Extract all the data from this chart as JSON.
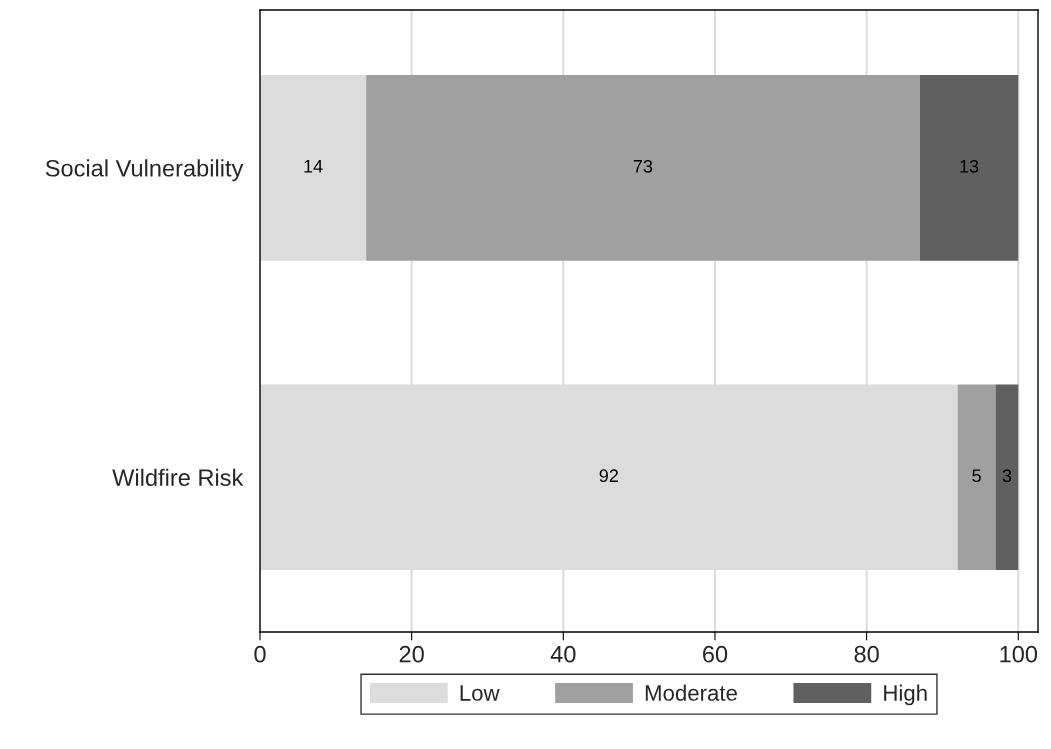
{
  "chart_data": {
    "type": "bar",
    "orientation": "horizontal",
    "stacked": true,
    "categories": [
      "Social Vulnerability",
      "Wildfire Risk"
    ],
    "series": [
      {
        "name": "Low",
        "color": "#dcdcdc",
        "values": [
          14,
          92
        ]
      },
      {
        "name": "Moderate",
        "color": "#a0a0a0",
        "values": [
          73,
          5
        ]
      },
      {
        "name": "High",
        "color": "#606060",
        "values": [
          13,
          3
        ]
      }
    ],
    "xlim": [
      0,
      102.6
    ],
    "xticks": [
      0,
      20,
      40,
      60,
      80,
      100
    ],
    "grid": "x",
    "legend": "bottom",
    "data_labels": true
  }
}
